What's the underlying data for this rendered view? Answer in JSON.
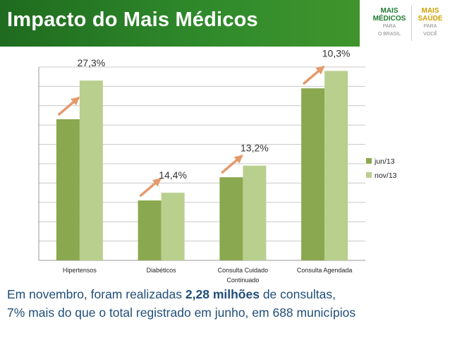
{
  "header": {
    "title": "Impacto do Mais Médicos",
    "logo_left": {
      "line1": "MAIS",
      "line2": "MÉDICOS",
      "line3": "PARA",
      "line4": "O BRASIL"
    },
    "logo_right": {
      "line1": "MAIS",
      "line2": "SAÚDE",
      "line3": "PARA",
      "line4": "VOCÊ"
    },
    "colors": {
      "header_green": "#2f8a2b",
      "logo_green": "#1d7a2e",
      "logo_yellow": "#d0a000"
    }
  },
  "chart_data": {
    "type": "bar",
    "categories": [
      "Hipertensos",
      "Diabéticos",
      "Consulta Cuidado Continuado",
      "Consulta Agendada"
    ],
    "category_lines": [
      [
        "Hipertensos"
      ],
      [
        "Diabéticos"
      ],
      [
        "Consulta Cuidado",
        "Continuado"
      ],
      [
        "Consulta  Agendada"
      ]
    ],
    "series": [
      {
        "name": "jun/13",
        "color": "#8aa84f",
        "values": [
          7.3,
          3.1,
          4.3,
          8.9
        ]
      },
      {
        "name": "nov/13",
        "color": "#b9cf8e",
        "values": [
          9.3,
          3.5,
          4.9,
          9.8
        ]
      }
    ],
    "annotations": [
      "27,3%",
      "14,4%",
      "13,2%",
      "10,3%"
    ],
    "arrow_color": "#e59a6b",
    "ylim": [
      0,
      10
    ],
    "grid": true,
    "y_tick_labels": false,
    "legend": "right"
  },
  "footer": {
    "line1_pre": "Em novembro, foram realizadas ",
    "line1_bold": "2,28 milhões",
    "line1_post": " de consultas,",
    "line2": "7% mais do que o total registrado em junho, em 688 municípios"
  }
}
